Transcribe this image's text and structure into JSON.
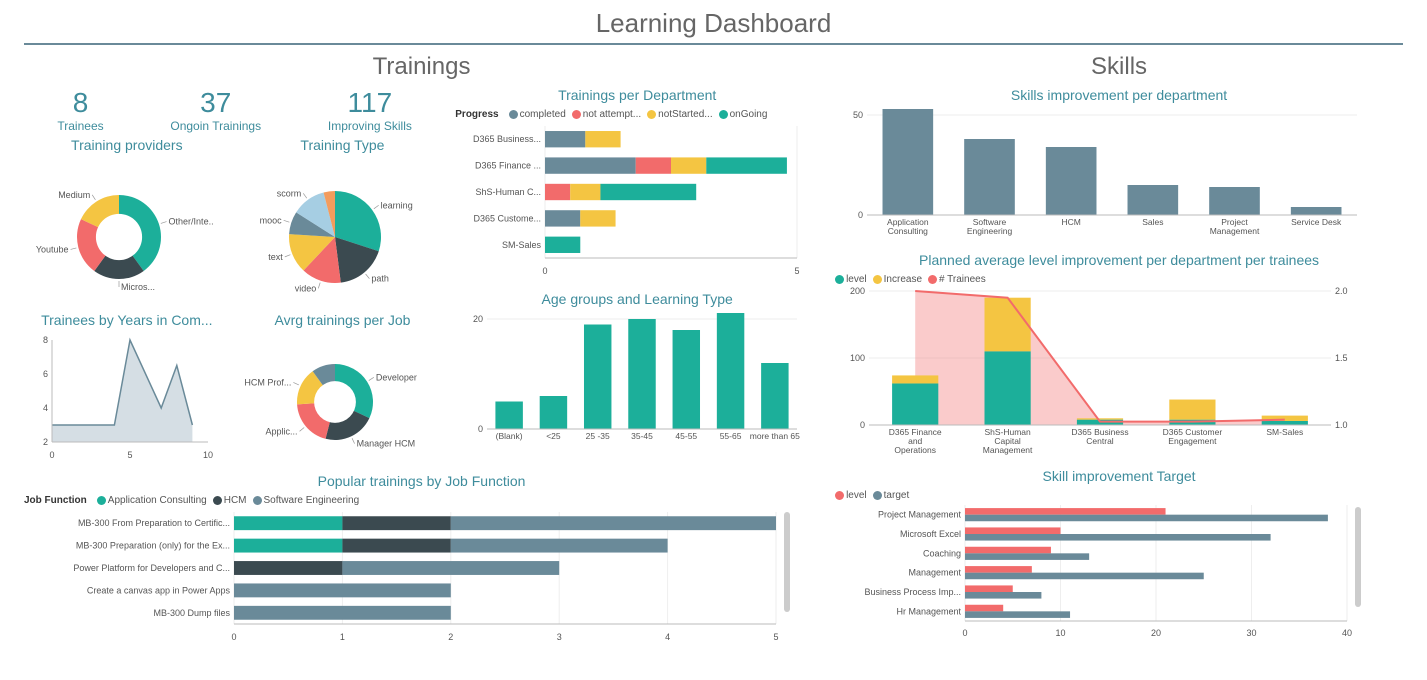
{
  "colors": {
    "teal": "#1caf9a",
    "dark": "#3b4a50",
    "red": "#f26b6b",
    "yellow": "#f4c542",
    "slate": "#6a8a99",
    "lightblue": "#a6cee3",
    "orange": "#f39c5d",
    "grid": "#e0e0e0",
    "axis": "#888",
    "titleText": "#3e8c9c",
    "mainText": "#666"
  },
  "header": {
    "title": "Learning Dashboard"
  },
  "trainings": {
    "title": "Trainings",
    "kpis": [
      {
        "value": "8",
        "label": "Trainees"
      },
      {
        "value": "37",
        "label": "Ongoin Trainings"
      },
      {
        "value": "117",
        "label": "Improving Skills"
      }
    ],
    "providers": {
      "title": "Training providers",
      "slices": [
        {
          "label": "Other/Inte...",
          "value": 40,
          "color": "#1caf9a"
        },
        {
          "label": "Micros...",
          "value": 20,
          "color": "#3b4a50"
        },
        {
          "label": "Youtube",
          "value": 22,
          "color": "#f26b6b"
        },
        {
          "label": "Medium",
          "value": 18,
          "color": "#f4c542"
        }
      ],
      "inner_radius": 0.55
    },
    "trainingType": {
      "title": "Training Type",
      "slices": [
        {
          "label": "learning",
          "value": 30,
          "color": "#1caf9a"
        },
        {
          "label": "path",
          "value": 18,
          "color": "#3b4a50"
        },
        {
          "label": "video",
          "value": 14,
          "color": "#f26b6b"
        },
        {
          "label": "text",
          "value": 14,
          "color": "#f4c542"
        },
        {
          "label": "mooc",
          "value": 8,
          "color": "#6a8a99"
        },
        {
          "label": "scorm",
          "value": 12,
          "color": "#a6cee3"
        },
        {
          "label": "",
          "value": 4,
          "color": "#f39c5d"
        }
      ],
      "inner_radius": 0
    },
    "perDepartment": {
      "title": "Trainings per Department",
      "legendLabel": "Progress",
      "legend": [
        {
          "label": "completed",
          "color": "#6a8a99"
        },
        {
          "label": "not attempt...",
          "color": "#f26b6b"
        },
        {
          "label": "notStarted...",
          "color": "#f4c542"
        },
        {
          "label": "onGoing",
          "color": "#1caf9a"
        }
      ],
      "categories": [
        "D365 Business...",
        "D365 Finance ...",
        "ShS-Human C...",
        "D365 Custome...",
        "SM-Sales"
      ],
      "stacks": [
        [
          [
            0.8,
            "#6a8a99"
          ],
          [
            0.7,
            "#f4c542"
          ]
        ],
        [
          [
            1.8,
            "#6a8a99"
          ],
          [
            0.7,
            "#f26b6b"
          ],
          [
            0.7,
            "#f4c542"
          ],
          [
            1.6,
            "#1caf9a"
          ]
        ],
        [
          [
            0.5,
            "#f26b6b"
          ],
          [
            0.6,
            "#f4c542"
          ],
          [
            1.9,
            "#1caf9a"
          ]
        ],
        [
          [
            0.7,
            "#6a8a99"
          ],
          [
            0.7,
            "#f4c542"
          ]
        ],
        [
          [
            0.7,
            "#1caf9a"
          ]
        ]
      ],
      "xlim": [
        0,
        5
      ]
    },
    "byYears": {
      "title": "Trainees by Years in Com...",
      "points": [
        [
          0,
          3
        ],
        [
          2,
          3
        ],
        [
          4,
          3
        ],
        [
          5,
          8
        ],
        [
          7,
          4
        ],
        [
          8,
          6.5
        ],
        [
          9,
          3
        ]
      ],
      "xlim": [
        0,
        10
      ],
      "ylim": [
        2,
        8
      ],
      "xticks": [
        0,
        5,
        10
      ],
      "yticks": [
        2,
        4,
        6,
        8
      ],
      "lineColor": "#6a8a99",
      "fillColor": "#c3d0d8"
    },
    "avgPerJob": {
      "title": "Avrg trainings per Job",
      "slices": [
        {
          "label": "Developer",
          "value": 32,
          "color": "#1caf9a"
        },
        {
          "label": "Manager HCM",
          "value": 22,
          "color": "#3b4a50"
        },
        {
          "label": "Applic...",
          "value": 20,
          "color": "#f26b6b"
        },
        {
          "label": "HCM Prof...",
          "value": 16,
          "color": "#f4c542"
        },
        {
          "label": "",
          "value": 10,
          "color": "#6a8a99"
        }
      ],
      "inner_radius": 0.55
    },
    "ageGroups": {
      "title": "Age groups and Learning Type",
      "categories": [
        "(Blank)",
        "<25",
        "25 -35",
        "35-45",
        "45-55",
        "55-65",
        "more than 65"
      ],
      "values": [
        5,
        6,
        19,
        20,
        18,
        22,
        12
      ],
      "ylim": [
        0,
        20
      ],
      "yticks": [
        0,
        20
      ],
      "barColor": "#1caf9a"
    },
    "popular": {
      "title": "Popular trainings by Job Function",
      "legendLabel": "Job Function",
      "legend": [
        {
          "label": "Application Consulting",
          "color": "#1caf9a"
        },
        {
          "label": "HCM",
          "color": "#3b4a50"
        },
        {
          "label": "Software Engineering",
          "color": "#6a8a99"
        }
      ],
      "categories": [
        "MB-300 From Preparation to Certific...",
        "MB-300 Preparation (only) for the Ex...",
        "Power Platform for Developers and C...",
        "Create a canvas app in Power Apps",
        "MB-300 Dump files"
      ],
      "stacks": [
        [
          [
            1,
            "#1caf9a"
          ],
          [
            1,
            "#3b4a50"
          ],
          [
            3,
            "#6a8a99"
          ]
        ],
        [
          [
            1,
            "#1caf9a"
          ],
          [
            1,
            "#3b4a50"
          ],
          [
            2,
            "#6a8a99"
          ]
        ],
        [
          [
            1,
            "#3b4a50"
          ],
          [
            2,
            "#6a8a99"
          ]
        ],
        [
          [
            2,
            "#6a8a99"
          ]
        ],
        [
          [
            2,
            "#6a8a99"
          ]
        ]
      ],
      "xlim": [
        0,
        5
      ],
      "xticks": [
        0,
        1,
        2,
        3,
        4,
        5
      ]
    }
  },
  "skills": {
    "title": "Skills",
    "perDept": {
      "title": "Skills improvement per department",
      "categories": [
        "Application Consulting",
        "Software Engineering",
        "HCM",
        "Sales",
        "Project Management",
        "Service Desk"
      ],
      "values": [
        68,
        38,
        34,
        15,
        14,
        4
      ],
      "ylim": [
        0,
        50
      ],
      "yticks": [
        0,
        50
      ],
      "barColor": "#6a8a99"
    },
    "planned": {
      "title": "Planned average level improvement per department per trainees",
      "legend": [
        {
          "label": "level",
          "color": "#1caf9a"
        },
        {
          "label": "Increase",
          "color": "#f4c542"
        },
        {
          "label": "# Trainees",
          "color": "#f26b6b"
        }
      ],
      "categories": [
        "D365 Finance and Operations",
        "ShS-Human Capital Management",
        "D365 Business Central",
        "D365 Customer Engagement",
        "SM-Sales"
      ],
      "level": [
        62,
        110,
        8,
        8,
        6
      ],
      "increase": [
        12,
        80,
        2,
        30,
        8
      ],
      "trainees": [
        200,
        190,
        5,
        5,
        8
      ],
      "ylimLeft": [
        0,
        200
      ],
      "yticksLeft": [
        0,
        100,
        200
      ],
      "ylimRight": [
        1.0,
        2.0
      ],
      "yticksRight": [
        1.0,
        1.5,
        2.0
      ],
      "lineColor": "#f26b6b",
      "lineFill": "rgba(242,107,107,0.35)"
    },
    "target": {
      "title": "Skill improvement Target",
      "legend": [
        {
          "label": "level",
          "color": "#f26b6b"
        },
        {
          "label": "target",
          "color": "#6a8a99"
        }
      ],
      "categories": [
        "Project Management",
        "Microsoft Excel",
        "Coaching",
        "Management",
        "Business Process Imp...",
        "Hr Management"
      ],
      "level": [
        21,
        10,
        9,
        7,
        5,
        4
      ],
      "targetVals": [
        38,
        32,
        13,
        25,
        8,
        11
      ],
      "xlim": [
        0,
        40
      ],
      "xticks": [
        0,
        10,
        20,
        30,
        40
      ]
    }
  }
}
